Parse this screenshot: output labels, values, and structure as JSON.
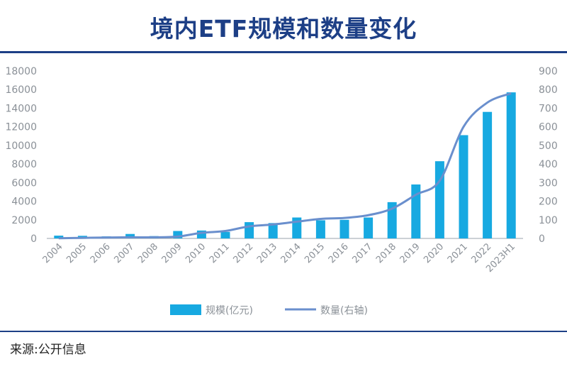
{
  "title": "境内ETF规模和数量变化",
  "source": "来源:公开信息",
  "colors": {
    "title": "#1d3f86",
    "bar": "#17a9e1",
    "line": "#6a8fcd",
    "axis": "#9aa3ad"
  },
  "chart_data": {
    "type": "bar",
    "categories": [
      "2004",
      "2005",
      "2006",
      "2007",
      "2008",
      "2009",
      "2010",
      "2011",
      "2012",
      "2013",
      "2014",
      "2015",
      "2016",
      "2017",
      "2018",
      "2019",
      "2020",
      "2021",
      "2022",
      "2023H1"
    ],
    "series": [
      {
        "name": "规模(亿元)",
        "type": "bar",
        "axis": "left",
        "values": [
          300,
          280,
          220,
          480,
          250,
          800,
          850,
          700,
          1750,
          1650,
          2250,
          1950,
          2000,
          2250,
          3900,
          5800,
          8300,
          11100,
          13600,
          15700
        ]
      },
      {
        "name": "数量(右轴)",
        "type": "line",
        "axis": "right",
        "values": [
          1,
          3,
          5,
          6,
          6,
          10,
          30,
          40,
          65,
          75,
          90,
          105,
          110,
          125,
          160,
          235,
          310,
          600,
          730,
          780
        ]
      }
    ],
    "left_axis": {
      "ylim": [
        0,
        18000
      ],
      "ticks": [
        0,
        2000,
        4000,
        6000,
        8000,
        10000,
        12000,
        14000,
        16000,
        18000
      ]
    },
    "right_axis": {
      "ylim": [
        0,
        900
      ],
      "ticks": [
        0,
        100,
        200,
        300,
        400,
        500,
        600,
        700,
        800,
        900
      ]
    },
    "legend": {
      "position": "bottom",
      "items": [
        "规模(亿元)",
        "数量(右轴)"
      ]
    },
    "grid": false
  }
}
